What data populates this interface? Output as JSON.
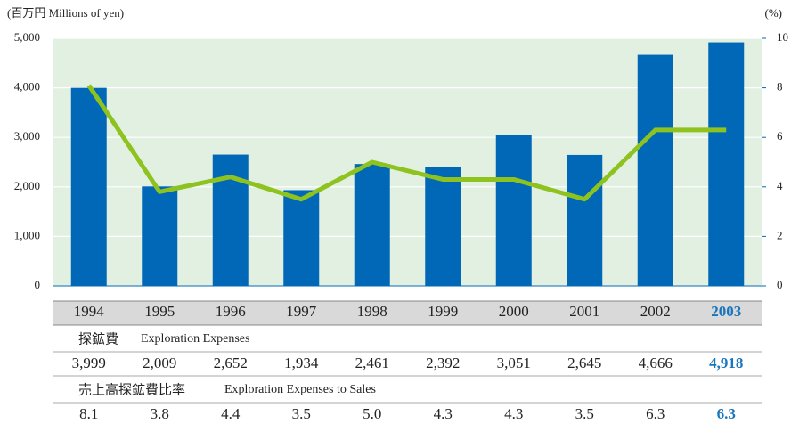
{
  "chart_data": {
    "type": "bar",
    "y_label": "(百万円 Millions of yen)",
    "y2_label": "(%)",
    "categories": [
      "1994",
      "1995",
      "1996",
      "1997",
      "1998",
      "1999",
      "2000",
      "2001",
      "2002",
      "2003"
    ],
    "highlight_index": 9,
    "highlight_color": "#1a75bb",
    "series": [
      {
        "name": "Exploration Expenses",
        "name_ja": "探鉱費",
        "type": "bar",
        "color": "#0068b7",
        "values": [
          3999,
          2009,
          2652,
          1934,
          2461,
          2392,
          3051,
          2645,
          4666,
          4918
        ],
        "value_labels": [
          "3,999",
          "2,009",
          "2,652",
          "1,934",
          "2,461",
          "2,392",
          "3,051",
          "2,645",
          "4,666",
          "4,918"
        ]
      },
      {
        "name": "Exploration Expenses to Sales",
        "name_ja": "売上高探鉱費比率",
        "type": "line",
        "axis": "y2",
        "color": "#8dc21f",
        "values": [
          8.1,
          3.8,
          4.4,
          3.5,
          5.0,
          4.3,
          4.3,
          3.5,
          6.3,
          6.3
        ],
        "value_labels": [
          "8.1",
          "3.8",
          "4.4",
          "3.5",
          "5.0",
          "4.3",
          "4.3",
          "3.5",
          "6.3",
          "6.3"
        ]
      }
    ],
    "ylim": [
      0,
      5000
    ],
    "yticks": [
      0,
      {
        "value": 1000,
        "label": "1,000"
      },
      {
        "value": 2000,
        "label": "2,000"
      },
      {
        "value": 3000,
        "label": "3,000"
      },
      {
        "value": 4000,
        "label": "4,000"
      },
      {
        "value": 5000,
        "label": "5,000"
      }
    ],
    "y2lim": [
      0,
      10
    ],
    "y2ticks": [
      0,
      2,
      4,
      6,
      8,
      10
    ],
    "plot_background": "#e1f0e1",
    "grid": true
  }
}
